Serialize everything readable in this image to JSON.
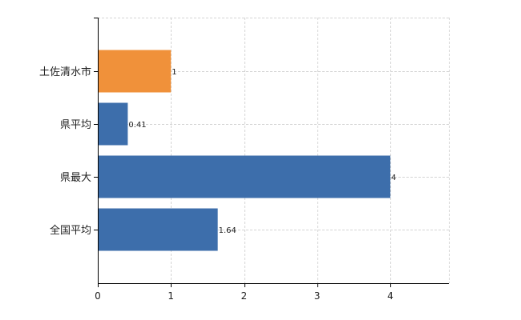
{
  "chart_data": {
    "type": "bar",
    "orientation": "horizontal",
    "categories": [
      "土佐清水市",
      "県平均",
      "県最大",
      "全国平均"
    ],
    "values": [
      1,
      0.41,
      4,
      1.64
    ],
    "value_labels": [
      "1",
      "0.41",
      "4",
      "1.64"
    ],
    "bar_colors": [
      "#f0913a",
      "#3d6eab",
      "#3d6eab",
      "#3d6eab"
    ],
    "xlim": [
      0,
      4.8
    ],
    "xticks": [
      0,
      1,
      2,
      3,
      4
    ],
    "xtick_labels": [
      "0",
      "1",
      "2",
      "3",
      "4"
    ],
    "grid": true,
    "title": "",
    "xlabel": "",
    "ylabel": ""
  }
}
